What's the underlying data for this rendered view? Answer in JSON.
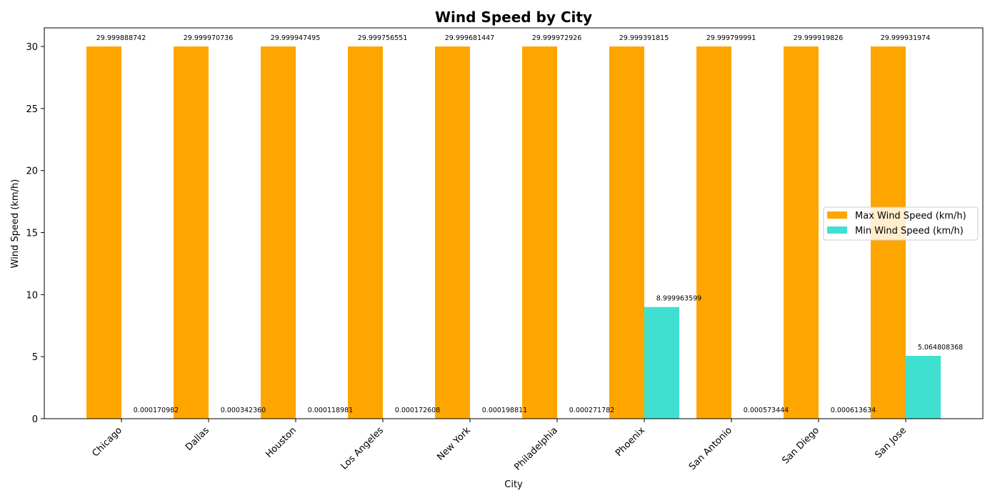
{
  "chart_data": {
    "type": "bar",
    "title": "Wind Speed by City",
    "xlabel": "City",
    "ylabel": "Wind Speed (km/h)",
    "categories": [
      "Chicago",
      "Dallas",
      "Houston",
      "Los Angeles",
      "New York",
      "Philadelphia",
      "Phoenix",
      "San Antonio",
      "San Diego",
      "San Jose"
    ],
    "series": [
      {
        "name": "Max Wind Speed (km/h)",
        "color": "#FFA500",
        "values": [
          29.999888742,
          29.999970736,
          29.999947495,
          29.999756551,
          29.999681447,
          29.999972926,
          29.999391815,
          29.999799991,
          29.999919826,
          29.999931974
        ],
        "labels": [
          "29.999888742",
          "29.999970736",
          "29.999947495",
          "29.999756551",
          "29.999681447",
          "29.999972926",
          "29.999391815",
          "29.999799991",
          "29.999919826",
          "29.999931974"
        ]
      },
      {
        "name": "Min Wind Speed (km/h)",
        "color": "#40E0D0",
        "values": [
          0.000170982,
          0.00034236,
          0.000118981,
          0.000172608,
          0.000198811,
          0.000271782,
          8.999963599,
          0.000573444,
          0.000613634,
          5.064808368
        ],
        "labels": [
          "0.000170982",
          "0.000342360",
          "0.000118981",
          "0.000172608",
          "0.000198811",
          "0.000271782",
          "8.999963599",
          "0.000573444",
          "0.000613634",
          "5.064808368"
        ]
      }
    ],
    "ylim": [
      0,
      31.5
    ],
    "yticks": [
      0,
      5,
      10,
      15,
      20,
      25,
      30
    ],
    "grid": false,
    "legend_position": "center-right"
  }
}
